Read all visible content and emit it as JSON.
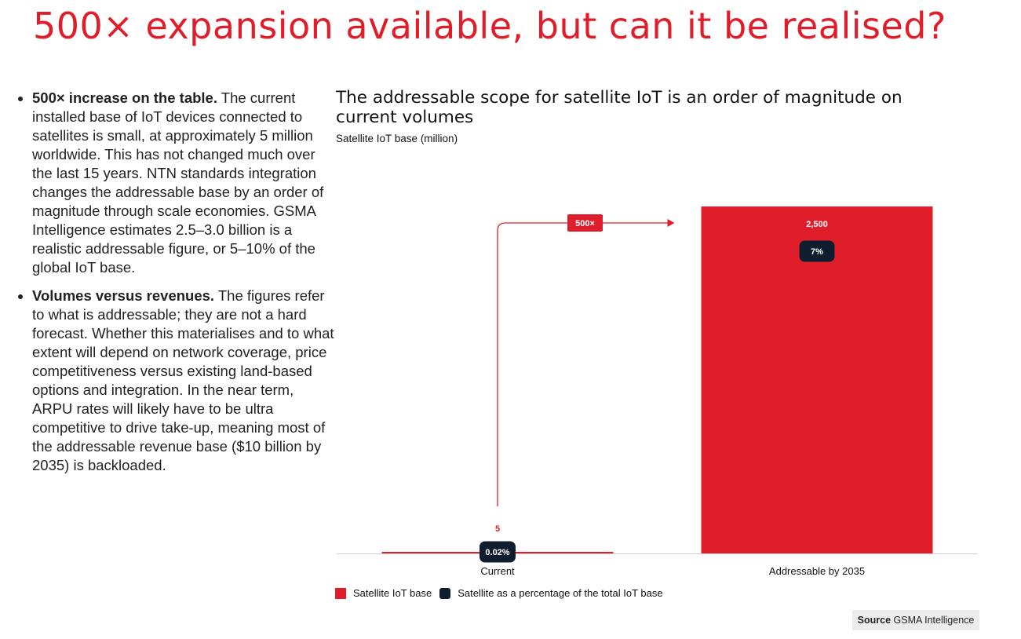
{
  "page": {
    "title": "500× expansion available, but can it be realised?"
  },
  "bullets": [
    {
      "bold": "500× increase on the table.",
      "text": " The current installed base of IoT devices connected to satellites is small, at approximately 5 million worldwide. This has not changed much over the last 15 years. NTN standards integration changes the addressable base by an order of magnitude through scale economies. GSMA Intelligence estimates 2.5–3.0 billion is a realistic addressable figure, or 5–10% of the global IoT base."
    },
    {
      "bold": "Volumes versus revenues.",
      "text": " The figures refer to what is addressable; they are not a hard forecast. Whether this materialises and to what extent will depend on network coverage, price competitiveness versus existing land-based options and integration. In the near term, ARPU rates will likely have to be ultra competitive to drive take-up, meaning most of the addressable revenue base ($10 billion by 2035) is backloaded."
    }
  ],
  "chart_data": {
    "type": "bar",
    "title": "The addressable scope for satellite IoT is an order of magnitude on current volumes",
    "ylabel": "Satellite IoT base (million)",
    "categories": [
      "Current",
      "Addressable by 2035"
    ],
    "ylim": [
      0,
      2800
    ],
    "grid": false,
    "legend_position": "bottom-left",
    "series": [
      {
        "name": "Satellite IoT base",
        "values": [
          5,
          2500
        ],
        "value_labels": [
          "5",
          "2,500"
        ],
        "color": "#e01e2b"
      },
      {
        "name": "Satellite as a percentage of the total IoT base",
        "values": [
          0.02,
          7
        ],
        "value_labels": [
          "0.02%",
          "7%"
        ],
        "color": "#0f1e2e"
      }
    ],
    "annotation": {
      "label": "500×",
      "from": "Current",
      "to": "Addressable by 2035"
    }
  },
  "source": {
    "label": "Source",
    "text": "GSMA Intelligence"
  }
}
